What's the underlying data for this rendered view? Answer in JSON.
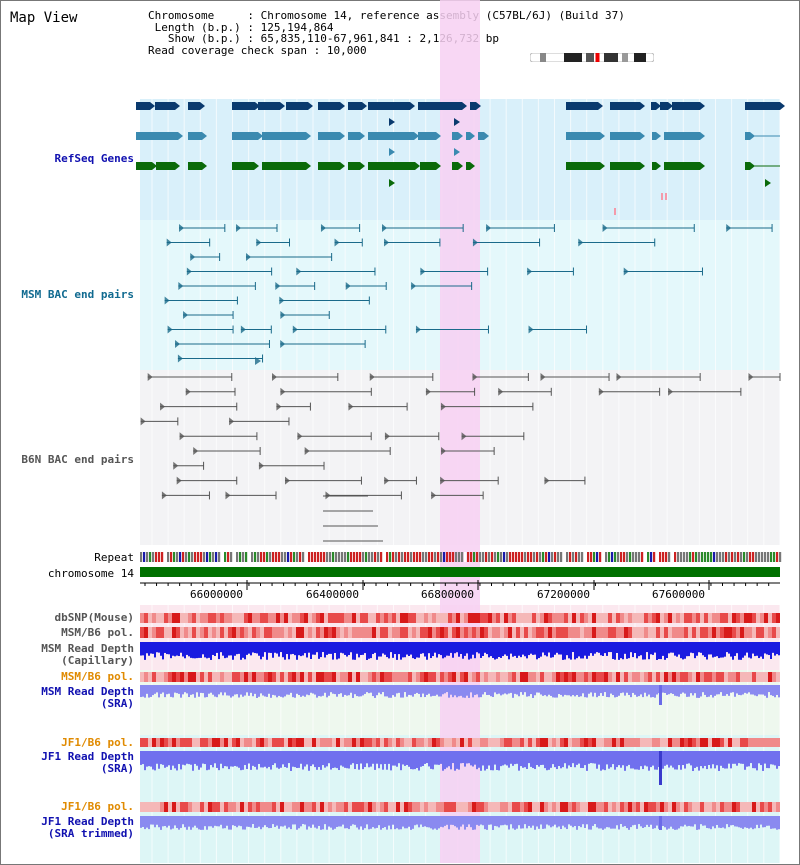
{
  "title": "Map View",
  "info": {
    "chromosome_key": "Chromosome",
    "chromosome_value": "Chromosome 14, reference assembly (C57BL/6J) (Build 37)",
    "length_key": "Length (b.p.)",
    "length_value": "125,194,864",
    "show_key": "Show (b.p.)",
    "show_value": "65,835,110-67,961,841 : 2,126,732 bp",
    "coverage_key": "Read coverage check span",
    "coverage_value": "10,000"
  },
  "tracks": {
    "refseq": "RefSeq Genes",
    "msm_bac": "MSM BAC end pairs",
    "b6n_bac": "B6N BAC end pairs",
    "repeat": "Repeat",
    "chromosome": "chromosome 14",
    "dbsnp": "dbSNP(Mouse)",
    "msm_b6_pol": "MSM/B6 pol.",
    "msm_read_depth_cap_1": "MSM Read Depth",
    "msm_read_depth_cap_2": "(Capillary)",
    "msm_b6_pol2": "MSM/B6 pol.",
    "msm_read_depth_sra_1": "MSM Read Depth",
    "msm_read_depth_sra_2": "(SRA)",
    "jf1_b6_pol": "JF1/B6 pol.",
    "jf1_read_depth_sra_1": "JF1 Read Depth",
    "jf1_read_depth_sra_2": "(SRA)",
    "jf1_b6_pol2": "JF1/B6 pol.",
    "jf1_read_depth_trim_1": "JF1 Read Depth",
    "jf1_read_depth_trim_2": "(SRA trimmed)"
  },
  "axis": {
    "ticks": [
      "66000000",
      "66400000",
      "66800000",
      "67200000",
      "67600000"
    ]
  },
  "colors": {
    "refseq_dark": "#0a3a6e",
    "refseq_mid": "#3a8ab0",
    "refseq_green": "#0a6a0a",
    "highlight": "#f7d0f2",
    "msm_bac": "#1a6a8a",
    "b6n_bac": "#555555",
    "chromosome": "#007000",
    "depth_blue": "#1a1ae0",
    "depth_light": "#7a7aee",
    "pol_red": "#e83030"
  }
}
